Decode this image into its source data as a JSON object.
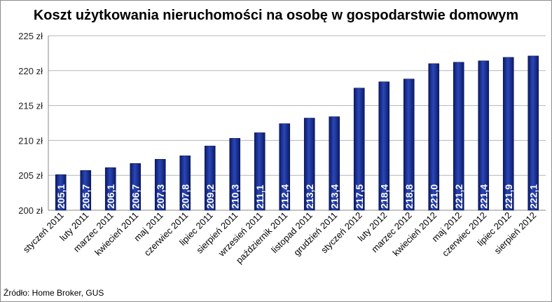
{
  "chart_data": {
    "type": "bar",
    "title": "Koszt użytkowania nieruchomości na osobę w gospodarstwie domowym",
    "categories": [
      "styczeń 2011",
      "luty 2011",
      "marzec 2011",
      "kwiecień 2011",
      "maj 2011",
      "czerwiec 2011",
      "lipiec 2011",
      "sierpień 2011",
      "wrzesień 2011",
      "październik 2011",
      "listopad 2011",
      "grudzień 2011",
      "styczeń 2012",
      "luty 2012",
      "marzec 2012",
      "kwiecień 2012",
      "maj 2012",
      "czerwiec 2012",
      "lipiec 2012",
      "sierpień 2012"
    ],
    "values": [
      205.1,
      205.7,
      206.1,
      206.7,
      207.3,
      207.8,
      209.2,
      210.3,
      211.1,
      212.4,
      213.2,
      213.4,
      217.5,
      218.4,
      218.8,
      221.0,
      221.2,
      221.4,
      221.9,
      222.1
    ],
    "data_labels": [
      "205,1",
      "205,7",
      "206,1",
      "206,7",
      "207,3",
      "207,8",
      "209,2",
      "210,3",
      "211,1",
      "212,4",
      "213,2",
      "213,4",
      "217,5",
      "218,4",
      "218,8",
      "221,0",
      "221,2",
      "221,4",
      "221,9",
      "222,1"
    ],
    "ylim": [
      200,
      225
    ],
    "y_ticks": [
      "200 zł",
      "205 zł",
      "210 zł",
      "215 zł",
      "220 zł",
      "225 zł"
    ],
    "grid": true,
    "bar_color": "#1a2f8f",
    "source": "Źródło: Home Broker, GUS"
  }
}
